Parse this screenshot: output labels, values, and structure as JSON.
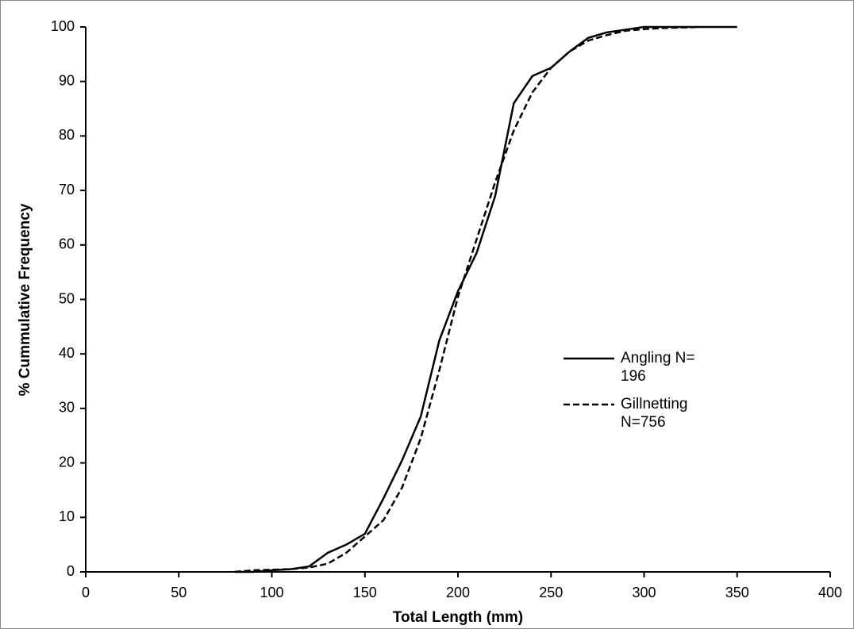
{
  "chart_data": {
    "type": "line",
    "xlabel": "Total Length (mm)",
    "ylabel": "% Cummulative Frequency",
    "x": [
      80,
      90,
      100,
      110,
      120,
      130,
      140,
      150,
      160,
      170,
      180,
      190,
      200,
      210,
      220,
      230,
      240,
      250,
      260,
      270,
      280,
      290,
      300,
      310,
      320,
      330,
      340,
      350
    ],
    "series": [
      {
        "name": "Angling N= 196",
        "color": "#000000",
        "dash": false,
        "values": [
          0,
          0,
          0.3,
          0.5,
          1,
          3.5,
          5,
          7,
          13.5,
          20.5,
          28.5,
          42.5,
          51.5,
          58.5,
          69,
          86,
          91,
          92.5,
          95.5,
          98,
          99,
          99.5,
          100,
          100,
          100,
          100,
          100,
          100
        ]
      },
      {
        "name": "Gillnetting N=756",
        "color": "#000000",
        "dash": true,
        "values": [
          0,
          0.3,
          0.4,
          0.5,
          0.8,
          1.5,
          3.5,
          6.5,
          9.5,
          15.5,
          24.5,
          37,
          50.5,
          61,
          71.5,
          81,
          88,
          92.5,
          95.5,
          97.5,
          98.5,
          99.3,
          99.6,
          99.8,
          99.9,
          100,
          null,
          null
        ]
      }
    ],
    "xlim": [
      0,
      400
    ],
    "xticks": [
      0,
      50,
      100,
      150,
      200,
      250,
      300,
      350,
      400
    ],
    "ylim": [
      0,
      100
    ],
    "yticks": [
      0,
      10,
      20,
      30,
      40,
      50,
      60,
      70,
      80,
      90,
      100
    ],
    "grid": false,
    "legend": "right"
  }
}
